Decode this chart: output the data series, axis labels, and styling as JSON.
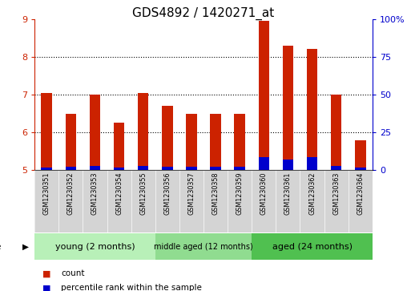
{
  "title": "GDS4892 / 1420271_at",
  "samples": [
    "GSM1230351",
    "GSM1230352",
    "GSM1230353",
    "GSM1230354",
    "GSM1230355",
    "GSM1230356",
    "GSM1230357",
    "GSM1230358",
    "GSM1230359",
    "GSM1230360",
    "GSM1230361",
    "GSM1230362",
    "GSM1230363",
    "GSM1230364"
  ],
  "count_values": [
    7.05,
    6.5,
    7.0,
    6.25,
    7.05,
    6.7,
    6.5,
    6.5,
    6.5,
    8.95,
    8.3,
    8.2,
    7.0,
    5.8
  ],
  "percentile_values": [
    0.08,
    0.1,
    0.12,
    0.08,
    0.12,
    0.1,
    0.1,
    0.1,
    0.1,
    0.35,
    0.28,
    0.35,
    0.12,
    0.07
  ],
  "ymin": 5,
  "ymax": 9,
  "yticks": [
    5,
    6,
    7,
    8,
    9
  ],
  "rhs_ticks": [
    0,
    25,
    50,
    75,
    100
  ],
  "bar_color": "#cc2200",
  "percentile_color": "#0000cc",
  "bar_width": 0.45,
  "groups": [
    {
      "label": "young (2 months)",
      "start": 0,
      "end": 4,
      "color": "#b8f0b8"
    },
    {
      "label": "middle aged (12 months)",
      "start": 5,
      "end": 8,
      "color": "#90dc90"
    },
    {
      "label": "aged (24 months)",
      "start": 9,
      "end": 13,
      "color": "#50c050"
    }
  ],
  "legend_count": "count",
  "legend_percentile": "percentile rank within the sample",
  "grid_yticks": [
    6,
    7,
    8
  ]
}
